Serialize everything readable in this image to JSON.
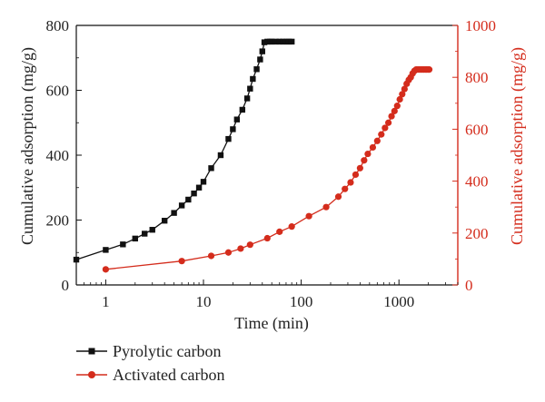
{
  "chart_data": {
    "type": "line",
    "xlabel": "Time (min)",
    "ylabel_left": "Cumulative adsorption (mg/g)",
    "ylabel_right": "Cumulative adsorption (mg/g)",
    "x_scale": "log",
    "xlim": [
      0.5,
      4000
    ],
    "ylim_left": [
      0,
      800
    ],
    "ylim_right": [
      0,
      1000
    ],
    "x_ticks": [
      1,
      10,
      100,
      1000
    ],
    "x_tick_labels": [
      "1",
      "10",
      "100",
      "1000"
    ],
    "y_ticks_left": [
      0,
      200,
      400,
      600,
      800
    ],
    "y_tick_labels_left": [
      "0",
      "200",
      "400",
      "600",
      "800"
    ],
    "y_ticks_right": [
      0,
      200,
      400,
      600,
      800,
      1000
    ],
    "y_tick_labels_right": [
      "0",
      "200",
      "400",
      "600",
      "800",
      "1000"
    ],
    "grid": false,
    "legend_position": "bottom-left, below plot",
    "colors": {
      "left_axis": "#111111",
      "right_axis": "#d42c1c"
    },
    "series": [
      {
        "name": "Pyrolytic carbon",
        "axis": "left",
        "marker": "square",
        "color": "#111111",
        "x": [
          0.5,
          1,
          1.5,
          2,
          2.5,
          3,
          4,
          5,
          6,
          7,
          8,
          9,
          10,
          12,
          15,
          18,
          20,
          22,
          25,
          28,
          30,
          32,
          35,
          38,
          40,
          42,
          45,
          48,
          50,
          55,
          60,
          65,
          70,
          75,
          80
        ],
        "y": [
          78,
          108,
          125,
          143,
          158,
          170,
          198,
          222,
          245,
          263,
          282,
          300,
          318,
          360,
          400,
          450,
          480,
          510,
          540,
          575,
          605,
          635,
          665,
          695,
          720,
          748,
          750,
          750,
          750,
          750,
          750,
          750,
          750,
          750,
          750
        ]
      },
      {
        "name": "Activated carbon",
        "axis": "right",
        "marker": "circle",
        "color": "#d42c1c",
        "x": [
          1,
          6,
          12,
          18,
          24,
          30,
          45,
          60,
          80,
          120,
          180,
          240,
          280,
          320,
          360,
          400,
          440,
          480,
          540,
          600,
          660,
          720,
          780,
          840,
          900,
          960,
          1020,
          1080,
          1140,
          1200,
          1260,
          1320,
          1380,
          1440,
          1500,
          1560,
          1620,
          1680,
          1740,
          1800,
          1860,
          1920,
          1980,
          2040
        ],
        "y": [
          60,
          92,
          112,
          125,
          140,
          155,
          180,
          205,
          225,
          265,
          300,
          340,
          370,
          395,
          425,
          450,
          480,
          505,
          530,
          555,
          580,
          605,
          625,
          650,
          670,
          690,
          715,
          735,
          755,
          775,
          790,
          800,
          815,
          825,
          830,
          830,
          830,
          830,
          830,
          830,
          830,
          830,
          830,
          830
        ]
      }
    ]
  }
}
